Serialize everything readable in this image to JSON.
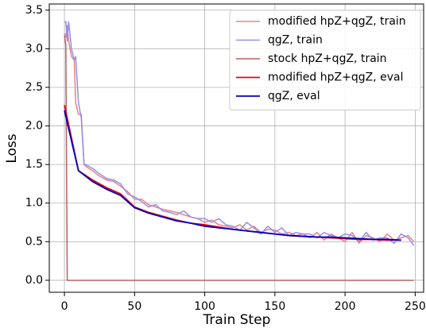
{
  "chart_data": {
    "type": "line",
    "xlabel": "Train Step",
    "ylabel": "Loss",
    "xlim": [
      -10.8,
      256
    ],
    "ylim": [
      -0.155,
      3.58
    ],
    "xticks": [
      0,
      50,
      100,
      150,
      200,
      250
    ],
    "yticks": [
      {
        "value": 0,
        "label": "0.0"
      },
      0.5,
      {
        "value": 1,
        "label": "1.0"
      },
      1.5,
      {
        "value": 2,
        "label": "2.0"
      },
      2.5,
      {
        "value": 3,
        "label": "3.0"
      },
      3.5
    ],
    "grid": true,
    "legend": "upper right",
    "series": [
      {
        "name": "modified hpZ+qgZ, train",
        "color": "#f08080",
        "width": 1.5,
        "x": [
          0,
          1,
          2,
          3,
          5,
          7,
          8,
          10,
          12,
          14,
          15,
          20,
          25,
          30,
          35,
          40,
          45,
          50,
          55,
          60,
          65,
          70,
          75,
          80,
          85,
          90,
          95,
          100,
          105,
          110,
          115,
          120,
          125,
          130,
          135,
          140,
          145,
          150,
          155,
          160,
          165,
          170,
          175,
          180,
          185,
          190,
          195,
          200,
          205,
          210,
          215,
          220,
          225,
          230,
          235,
          240,
          245,
          249
        ],
        "values": [
          3.2,
          3.15,
          3.3,
          3.1,
          2.9,
          2.85,
          2.3,
          2.15,
          2.15,
          1.5,
          1.48,
          1.42,
          1.35,
          1.3,
          1.28,
          1.22,
          1.15,
          1.05,
          1.05,
          0.98,
          0.95,
          0.92,
          0.9,
          0.88,
          0.85,
          0.82,
          0.8,
          0.75,
          0.78,
          0.72,
          0.7,
          0.68,
          0.72,
          0.65,
          0.7,
          0.62,
          0.66,
          0.65,
          0.6,
          0.62,
          0.58,
          0.6,
          0.55,
          0.62,
          0.52,
          0.6,
          0.55,
          0.5,
          0.62,
          0.48,
          0.58,
          0.55,
          0.5,
          0.6,
          0.52,
          0.55,
          0.58,
          0.5
        ]
      },
      {
        "name": "qgZ, train",
        "color": "#9090f0",
        "width": 1.5,
        "x": [
          0,
          1,
          2,
          3,
          5,
          7,
          8,
          10,
          12,
          14,
          15,
          20,
          25,
          30,
          35,
          40,
          45,
          50,
          55,
          60,
          65,
          70,
          75,
          80,
          85,
          90,
          95,
          100,
          105,
          110,
          115,
          120,
          125,
          130,
          135,
          140,
          145,
          150,
          155,
          160,
          165,
          170,
          175,
          180,
          185,
          190,
          195,
          200,
          205,
          210,
          215,
          220,
          225,
          230,
          235,
          240,
          245,
          249
        ],
        "values": [
          3.35,
          3.35,
          3.1,
          3.35,
          3.0,
          2.85,
          2.9,
          2.3,
          2.1,
          1.5,
          1.5,
          1.45,
          1.38,
          1.32,
          1.3,
          1.25,
          1.12,
          1.08,
          1.02,
          0.95,
          0.98,
          0.9,
          0.88,
          0.85,
          0.9,
          0.82,
          0.8,
          0.8,
          0.75,
          0.8,
          0.72,
          0.7,
          0.65,
          0.75,
          0.68,
          0.6,
          0.7,
          0.62,
          0.68,
          0.58,
          0.62,
          0.6,
          0.6,
          0.55,
          0.62,
          0.58,
          0.55,
          0.6,
          0.58,
          0.5,
          0.62,
          0.52,
          0.55,
          0.55,
          0.48,
          0.6,
          0.55,
          0.45
        ]
      },
      {
        "name": "stock hpZ+qgZ, train",
        "color": "#b86060",
        "width": 1.5,
        "x": [
          0,
          1,
          2,
          249
        ],
        "values": [
          3.17,
          3.05,
          0,
          0
        ]
      },
      {
        "name": "modified hpZ+qgZ, eval",
        "color": "#e00010",
        "width": 1.8,
        "x": [
          0,
          10,
          20,
          30,
          40,
          50,
          60,
          70,
          80,
          90,
          100,
          110,
          120,
          130,
          140,
          150,
          160,
          170,
          180,
          190,
          200,
          210,
          220,
          230,
          240
        ],
        "values": [
          2.27,
          1.42,
          1.3,
          1.2,
          1.12,
          0.95,
          0.88,
          0.83,
          0.78,
          0.74,
          0.72,
          0.69,
          0.66,
          0.64,
          0.62,
          0.6,
          0.58,
          0.57,
          0.56,
          0.55,
          0.54,
          0.53,
          0.53,
          0.52,
          0.52
        ]
      },
      {
        "name": "qgZ, eval",
        "color": "#0000c0",
        "width": 1.8,
        "x": [
          0,
          10,
          20,
          30,
          40,
          50,
          60,
          70,
          80,
          90,
          100,
          110,
          120,
          130,
          140,
          150,
          160,
          170,
          180,
          190,
          200,
          210,
          220,
          230,
          240
        ],
        "values": [
          2.2,
          1.42,
          1.28,
          1.18,
          1.1,
          0.94,
          0.87,
          0.82,
          0.77,
          0.74,
          0.7,
          0.68,
          0.66,
          0.64,
          0.62,
          0.6,
          0.58,
          0.57,
          0.56,
          0.56,
          0.55,
          0.54,
          0.53,
          0.53,
          0.52
        ]
      }
    ]
  }
}
